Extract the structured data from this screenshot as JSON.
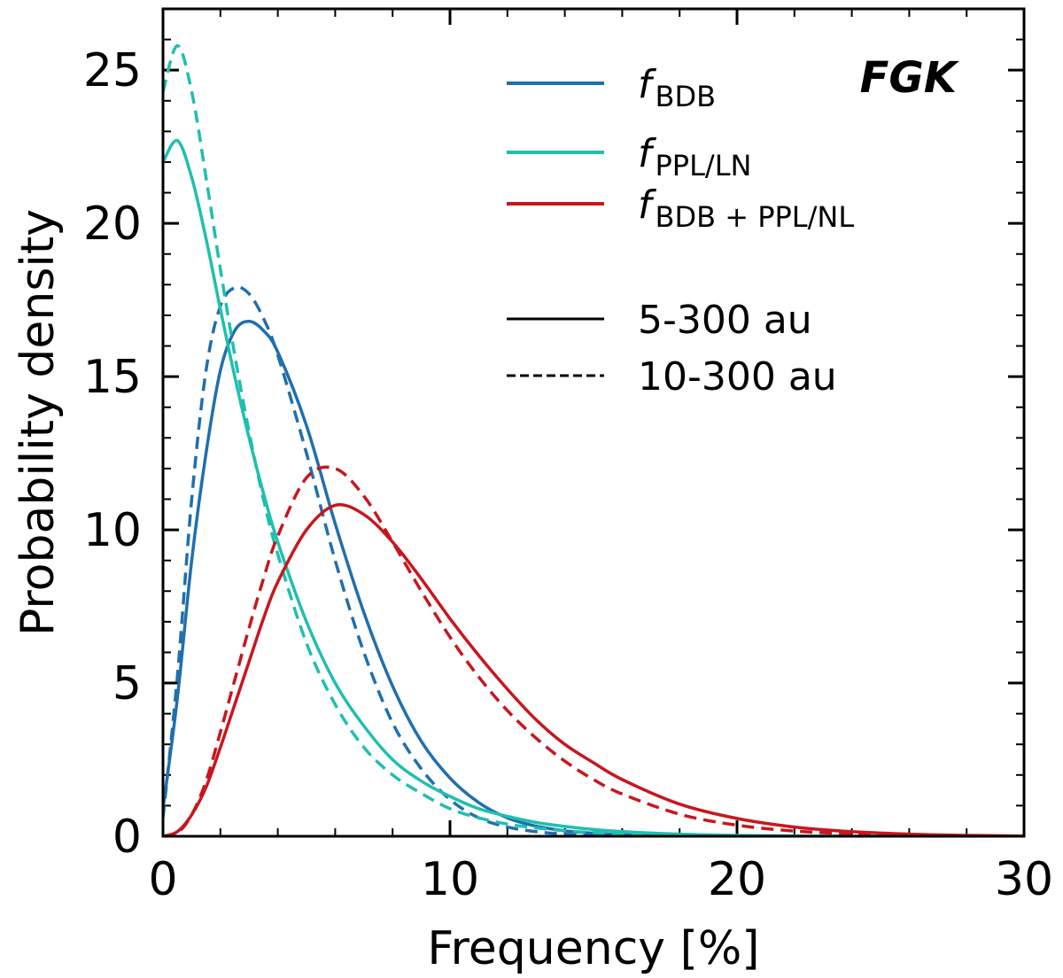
{
  "chart_data": {
    "type": "line",
    "annotation": "FGK",
    "xlabel": "Frequency [%]",
    "ylabel": "Probability density",
    "xlim": [
      0,
      30
    ],
    "ylim": [
      0,
      27
    ],
    "xticks": [
      0,
      10,
      20,
      30
    ],
    "yticks": [
      0,
      5,
      10,
      15,
      20,
      25
    ],
    "x": [
      0,
      0.5,
      1,
      1.5,
      2,
      2.5,
      3,
      3.5,
      4,
      5,
      6,
      7,
      8,
      9,
      10,
      11,
      12,
      13,
      14,
      15,
      16,
      18,
      20,
      22,
      24,
      26,
      28,
      30
    ],
    "series": [
      {
        "name": "fBDB 5-300 au",
        "color": "#1f6fae",
        "style": "solid",
        "values": [
          0.9,
          4.5,
          9.0,
          12.5,
          15.2,
          16.5,
          16.8,
          16.5,
          15.8,
          13.4,
          10.2,
          7.3,
          4.9,
          3.1,
          1.9,
          1.1,
          0.6,
          0.33,
          0.18,
          0.1,
          0.05,
          0.015,
          0.004,
          0.001,
          0,
          0,
          0,
          0
        ]
      },
      {
        "name": "fBDB 10-300 au",
        "color": "#1f6fae",
        "style": "dashed",
        "values": [
          0.6,
          5.2,
          11.0,
          15.2,
          17.3,
          17.9,
          17.7,
          16.9,
          15.7,
          12.5,
          9.0,
          6.0,
          3.7,
          2.2,
          1.2,
          0.6,
          0.3,
          0.15,
          0.07,
          0.03,
          0.015,
          0.003,
          0.001,
          0,
          0,
          0,
          0,
          0
        ]
      },
      {
        "name": "fPPL/LN 5-300 au",
        "color": "#1fbfae",
        "style": "solid",
        "values": [
          22.0,
          22.7,
          21.5,
          19.5,
          17.2,
          15.0,
          13.0,
          11.2,
          9.6,
          7.0,
          5.0,
          3.6,
          2.5,
          1.8,
          1.3,
          0.9,
          0.65,
          0.45,
          0.32,
          0.22,
          0.15,
          0.07,
          0.03,
          0.015,
          0.006,
          0.003,
          0.001,
          0
        ]
      },
      {
        "name": "fPPL/LN 10-300 au",
        "color": "#1fbfae",
        "style": "dashed",
        "values": [
          24.3,
          25.8,
          24.3,
          21.5,
          18.5,
          15.7,
          13.2,
          11.0,
          9.2,
          6.3,
          4.3,
          2.9,
          2.0,
          1.4,
          0.9,
          0.6,
          0.4,
          0.27,
          0.18,
          0.12,
          0.08,
          0.035,
          0.015,
          0.006,
          0.002,
          0.001,
          0,
          0
        ]
      },
      {
        "name": "fBDB+PPL/NL 5-300 au",
        "color": "#c8161d",
        "style": "solid",
        "values": [
          0,
          0.15,
          0.7,
          1.6,
          2.9,
          4.3,
          5.7,
          7.1,
          8.3,
          10.0,
          10.8,
          10.5,
          9.6,
          8.4,
          7.1,
          5.9,
          4.8,
          3.8,
          3.0,
          2.4,
          1.85,
          1.05,
          0.58,
          0.3,
          0.15,
          0.07,
          0.03,
          0.01
        ]
      },
      {
        "name": "fBDB+PPL/NL 10-300 au",
        "color": "#c8161d",
        "style": "dashed",
        "values": [
          0,
          0.1,
          0.7,
          1.8,
          3.4,
          5.1,
          6.8,
          8.4,
          9.8,
          11.7,
          12.0,
          11.1,
          9.6,
          8.0,
          6.5,
          5.2,
          4.1,
          3.2,
          2.45,
          1.85,
          1.38,
          0.72,
          0.36,
          0.17,
          0.08,
          0.035,
          0.015,
          0.005
        ]
      }
    ],
    "legend": {
      "placement": "top-right",
      "color_entries": [
        {
          "main": "f",
          "sub": "BDB",
          "color": "#1f6fae"
        },
        {
          "main": "f",
          "sub": "PPL/LN",
          "color": "#1fbfae"
        },
        {
          "main": "f",
          "sub": "BDB + PPL/NL",
          "color": "#c8161d"
        }
      ],
      "style_entries": [
        {
          "label": "5-300 au",
          "style": "solid"
        },
        {
          "label": "10-300 au",
          "style": "dashed"
        }
      ]
    }
  }
}
